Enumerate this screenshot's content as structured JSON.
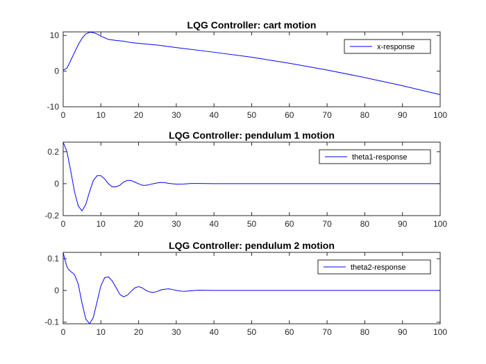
{
  "chart_data": [
    {
      "type": "line",
      "title": "LQG Controller: cart motion",
      "xlabel": "",
      "ylabel": "",
      "xlim": [
        0,
        100
      ],
      "ylim": [
        -10,
        11
      ],
      "xticks": [
        0,
        10,
        20,
        30,
        40,
        50,
        60,
        70,
        80,
        90,
        100
      ],
      "yticks": [
        -10,
        0,
        10
      ],
      "grid": false,
      "legend_position": "top-right",
      "series": [
        {
          "name": "x-response",
          "color": "#0000ff",
          "x": [
            0,
            1,
            2,
            3,
            4,
            5,
            6,
            7,
            8,
            9,
            10,
            12,
            14,
            16,
            18,
            20,
            25,
            30,
            40,
            50,
            60,
            70,
            80,
            90,
            100
          ],
          "y": [
            0.3,
            0.8,
            3.0,
            5.2,
            7.4,
            9.2,
            10.4,
            10.9,
            10.8,
            10.4,
            9.8,
            8.9,
            8.6,
            8.4,
            8.0,
            7.8,
            7.3,
            6.6,
            5.3,
            3.9,
            2.2,
            0.3,
            -1.8,
            -4.1,
            -6.6
          ]
        }
      ]
    },
    {
      "type": "line",
      "title": "LQG Controller: pendulum 1 motion",
      "xlabel": "",
      "ylabel": "",
      "xlim": [
        0,
        100
      ],
      "ylim": [
        -0.2,
        0.26
      ],
      "xticks": [
        0,
        10,
        20,
        30,
        40,
        50,
        60,
        70,
        80,
        90,
        100
      ],
      "yticks": [
        -0.2,
        0,
        0.2
      ],
      "grid": false,
      "legend_position": "top-right",
      "series": [
        {
          "name": "theta1-response",
          "color": "#0000ff",
          "x": [
            0,
            1,
            2,
            3,
            4,
            5,
            6,
            7,
            8,
            9,
            10,
            11,
            12,
            13,
            14,
            15,
            16,
            17,
            18,
            19,
            20,
            21,
            22,
            23,
            24,
            25,
            26,
            27,
            28,
            30,
            32,
            34,
            36,
            40,
            50,
            60,
            70,
            80,
            90,
            100
          ],
          "y": [
            0.26,
            0.2,
            0.08,
            -0.05,
            -0.14,
            -0.17,
            -0.13,
            -0.05,
            0.02,
            0.05,
            0.05,
            0.03,
            0.0,
            -0.02,
            -0.02,
            -0.01,
            0.01,
            0.02,
            0.02,
            0.01,
            0.0,
            -0.01,
            -0.01,
            -0.005,
            0.0,
            0.005,
            0.008,
            0.006,
            0.002,
            -0.003,
            -0.002,
            0.001,
            0.001,
            0.0,
            0.0,
            0.0,
            0.0,
            0.0,
            0.0,
            0.0
          ]
        }
      ]
    },
    {
      "type": "line",
      "title": "LQG Controller: pendulum 2 motion",
      "xlabel": "",
      "ylabel": "",
      "xlim": [
        0,
        100
      ],
      "ylim": [
        -0.105,
        0.12
      ],
      "xticks": [
        0,
        10,
        20,
        30,
        40,
        50,
        60,
        70,
        80,
        90,
        100
      ],
      "yticks": [
        -0.1,
        0,
        0.1
      ],
      "grid": false,
      "legend_position": "top-right",
      "series": [
        {
          "name": "theta2-response",
          "color": "#0000ff",
          "x": [
            0,
            0.5,
            1,
            1.5,
            2,
            3,
            4,
            5,
            6,
            7,
            8,
            9,
            10,
            11,
            12,
            13,
            14,
            15,
            16,
            17,
            18,
            19,
            20,
            21,
            22,
            23,
            24,
            25,
            26,
            27,
            28,
            29,
            30,
            32,
            34,
            36,
            40,
            50,
            60,
            70,
            80,
            90,
            100
          ],
          "y": [
            0.12,
            0.095,
            0.075,
            0.065,
            0.06,
            0.05,
            0.02,
            -0.04,
            -0.09,
            -0.105,
            -0.085,
            -0.035,
            0.015,
            0.04,
            0.043,
            0.03,
            0.01,
            -0.012,
            -0.02,
            -0.015,
            -0.003,
            0.008,
            0.012,
            0.008,
            0.0,
            -0.005,
            -0.006,
            -0.003,
            0.002,
            0.004,
            0.005,
            0.003,
            0.0,
            -0.003,
            -0.001,
            0.001,
            0.0,
            0.0,
            0.0,
            0.0,
            0.0,
            0.0,
            0.0
          ]
        }
      ]
    }
  ]
}
